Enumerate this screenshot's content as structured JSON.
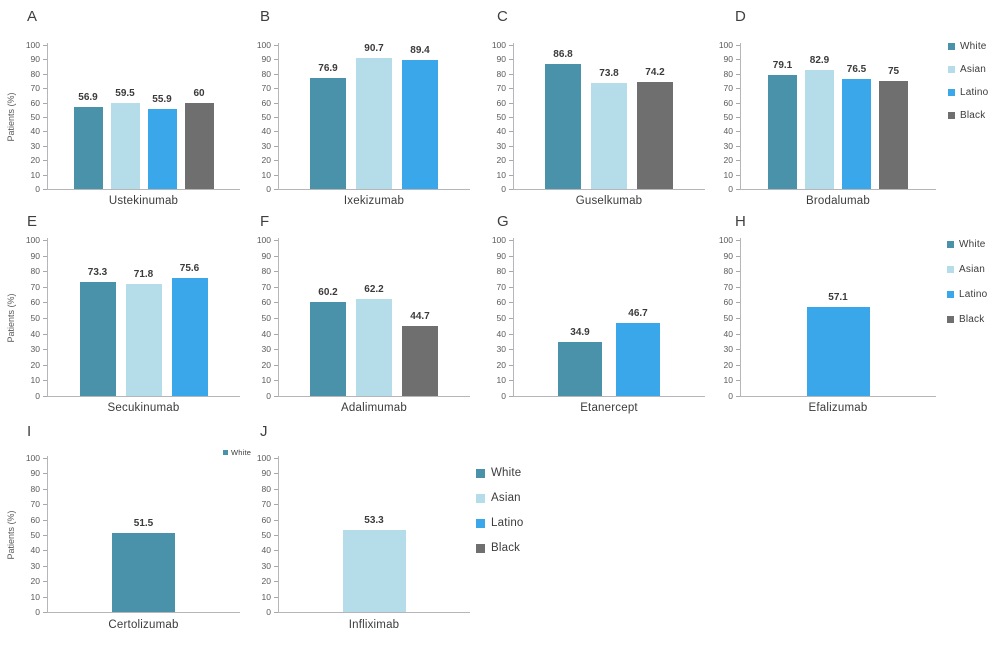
{
  "figure": {
    "ylabel": "Patients (%)",
    "yticks": [
      0,
      10,
      20,
      30,
      40,
      50,
      60,
      70,
      80,
      90,
      100
    ],
    "ylim": [
      0,
      100
    ]
  },
  "colors": {
    "White": "#4a92aa",
    "Asian": "#b5dde9",
    "Latino": "#3aa7eb",
    "Black": "#6f6f6f"
  },
  "legends": [
    {
      "id": "top-right",
      "items": [
        "White",
        "Asian",
        "Latino",
        "Black"
      ]
    },
    {
      "id": "middle-right",
      "items": [
        "White",
        "Asian",
        "Latino",
        "Black"
      ]
    },
    {
      "id": "bottom",
      "items": [
        "White",
        "Asian",
        "Latino",
        "Black"
      ]
    },
    {
      "id": "panel-i-mini",
      "items": [
        "White"
      ]
    }
  ],
  "chart_data": [
    {
      "type": "bar",
      "panel": "A",
      "title": "Ustekinumab",
      "ylabel": "Patients (%)",
      "ylim": [
        0,
        100
      ],
      "series": [
        {
          "name": "White",
          "value": 56.9
        },
        {
          "name": "Asian",
          "value": 59.5
        },
        {
          "name": "Latino",
          "value": 55.9
        },
        {
          "name": "Black",
          "value": 60
        }
      ]
    },
    {
      "type": "bar",
      "panel": "B",
      "title": "Ixekizumab",
      "ylim": [
        0,
        100
      ],
      "series": [
        {
          "name": "White",
          "value": 76.9
        },
        {
          "name": "Asian",
          "value": 90.7
        },
        {
          "name": "Latino",
          "value": 89.4
        }
      ]
    },
    {
      "type": "bar",
      "panel": "C",
      "title": "Guselkumab",
      "ylim": [
        0,
        100
      ],
      "series": [
        {
          "name": "White",
          "value": 86.8
        },
        {
          "name": "Asian",
          "value": 73.8
        },
        {
          "name": "Black",
          "value": 74.2
        }
      ]
    },
    {
      "type": "bar",
      "panel": "D",
      "title": "Brodalumab",
      "ylim": [
        0,
        100
      ],
      "series": [
        {
          "name": "White",
          "value": 79.1
        },
        {
          "name": "Asian",
          "value": 82.9
        },
        {
          "name": "Latino",
          "value": 76.5
        },
        {
          "name": "Black",
          "value": 75
        }
      ]
    },
    {
      "type": "bar",
      "panel": "E",
      "title": "Secukinumab",
      "ylabel": "Patients (%)",
      "ylim": [
        0,
        100
      ],
      "series": [
        {
          "name": "White",
          "value": 73.3
        },
        {
          "name": "Asian",
          "value": 71.8
        },
        {
          "name": "Latino",
          "value": 75.6
        }
      ]
    },
    {
      "type": "bar",
      "panel": "F",
      "title": "Adalimumab",
      "ylim": [
        0,
        100
      ],
      "series": [
        {
          "name": "White",
          "value": 60.2
        },
        {
          "name": "Asian",
          "value": 62.2
        },
        {
          "name": "Black",
          "value": 44.7
        }
      ]
    },
    {
      "type": "bar",
      "panel": "G",
      "title": "Etanercept",
      "ylim": [
        0,
        100
      ],
      "series": [
        {
          "name": "White",
          "value": 34.9
        },
        {
          "name": "Latino",
          "value": 46.7
        }
      ]
    },
    {
      "type": "bar",
      "panel": "H",
      "title": "Efalizumab",
      "ylim": [
        0,
        100
      ],
      "series": [
        {
          "name": "Latino",
          "value": 57.1
        }
      ]
    },
    {
      "type": "bar",
      "panel": "I",
      "title": "Certolizumab",
      "ylabel": "Patients (%)",
      "ylim": [
        0,
        100
      ],
      "series": [
        {
          "name": "White",
          "value": 51.5
        }
      ]
    },
    {
      "type": "bar",
      "panel": "J",
      "title": "Infliximab",
      "ylim": [
        0,
        100
      ],
      "series": [
        {
          "name": "Asian",
          "value": 53.3
        }
      ]
    }
  ]
}
